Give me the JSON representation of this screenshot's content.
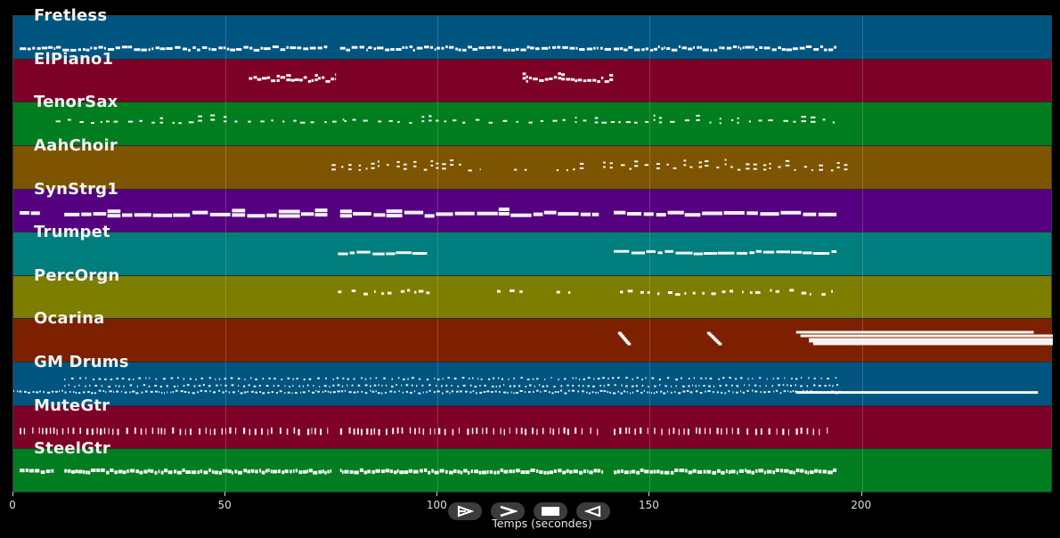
{
  "tracks": [
    {
      "name": "Fretless",
      "color": "#005580"
    },
    {
      "name": "ElPiano1",
      "color": "#7d0028"
    },
    {
      "name": "TenorSax",
      "color": "#007d1e"
    },
    {
      "name": "AahChoir",
      "color": "#7d5500"
    },
    {
      "name": "SynStrg1",
      "color": "#550080"
    },
    {
      "name": "Trumpet",
      "color": "#007d7d"
    },
    {
      "name": "PercOrgn",
      "color": "#7d7d00"
    },
    {
      "name": "Ocarina",
      "color": "#7d2000"
    },
    {
      "name": "GM Drums",
      "color": "#005580"
    },
    {
      "name": "MuteGtr",
      "color": "#7d0028"
    },
    {
      "name": "SteelGtr",
      "color": "#007d1e"
    }
  ],
  "x_axis": {
    "label": "Temps (secondes)",
    "ticks": [
      0,
      50,
      100,
      150,
      200
    ],
    "range": [
      0,
      245
    ]
  },
  "controls": {
    "play_icon": "play-outline-icon",
    "forward_icon": "forward-icon",
    "stop_icon": "stop-icon",
    "back_icon": "back-icon"
  }
}
